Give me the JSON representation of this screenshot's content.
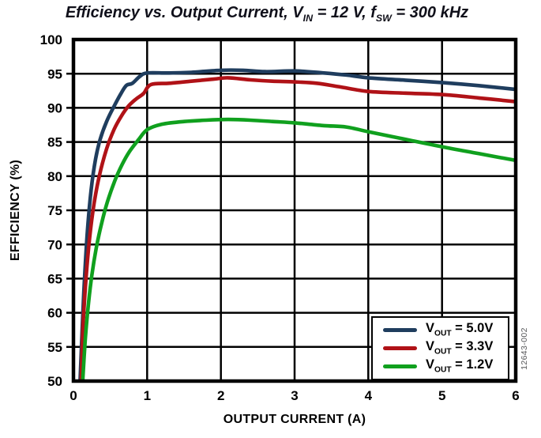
{
  "figure": {
    "title_markup": "Efficiency vs. Output Current, V_{IN} = 12 V, f_{SW} = 300 kHz",
    "watermark": "12643-002"
  },
  "chart_data": {
    "type": "line",
    "title": "Efficiency vs. Output Current, VIN = 12 V, fSW = 300 kHz",
    "xlabel": "OUTPUT CURRENT (A)",
    "ylabel": "EFFICIENCY (%)",
    "xlim": [
      0,
      6
    ],
    "ylim": [
      50,
      100
    ],
    "xticks": [
      0,
      1,
      2,
      3,
      4,
      5,
      6
    ],
    "yticks": [
      50,
      55,
      60,
      65,
      70,
      75,
      80,
      85,
      90,
      95,
      100
    ],
    "grid": true,
    "grid_color": "#000000",
    "legend_position": "lower right",
    "series": [
      {
        "name": "VOUT = 5.0V",
        "name_markup": "V_{OUT} = 5.0V",
        "color": "#1f3d5e",
        "points": [
          [
            0.09,
            50
          ],
          [
            0.12,
            58
          ],
          [
            0.15,
            65
          ],
          [
            0.19,
            72
          ],
          [
            0.24,
            78
          ],
          [
            0.3,
            82.5
          ],
          [
            0.36,
            85.3
          ],
          [
            0.45,
            88.0
          ],
          [
            0.55,
            90.2
          ],
          [
            0.65,
            92.2
          ],
          [
            0.72,
            93.3
          ],
          [
            0.8,
            93.6
          ],
          [
            0.9,
            94.6
          ],
          [
            1.0,
            95.1
          ],
          [
            1.3,
            95.1
          ],
          [
            1.6,
            95.2
          ],
          [
            2.0,
            95.5
          ],
          [
            2.3,
            95.5
          ],
          [
            2.6,
            95.3
          ],
          [
            3.0,
            95.4
          ],
          [
            3.4,
            95.1
          ],
          [
            3.7,
            94.8
          ],
          [
            4.0,
            94.4
          ],
          [
            4.5,
            94.05
          ],
          [
            5.0,
            93.7
          ],
          [
            5.5,
            93.25
          ],
          [
            6.0,
            92.7
          ]
        ]
      },
      {
        "name": "VOUT = 3.3V",
        "name_markup": "V_{OUT} = 3.3V",
        "color": "#b01217",
        "points": [
          [
            0.105,
            50
          ],
          [
            0.13,
            58
          ],
          [
            0.17,
            65
          ],
          [
            0.22,
            71
          ],
          [
            0.28,
            76
          ],
          [
            0.35,
            80
          ],
          [
            0.45,
            84
          ],
          [
            0.55,
            86.8
          ],
          [
            0.65,
            88.8
          ],
          [
            0.75,
            90.3
          ],
          [
            0.85,
            91.3
          ],
          [
            0.95,
            92.1
          ],
          [
            1.05,
            93.4
          ],
          [
            1.3,
            93.6
          ],
          [
            1.6,
            93.9
          ],
          [
            1.9,
            94.2
          ],
          [
            2.1,
            94.4
          ],
          [
            2.4,
            94.1
          ],
          [
            2.7,
            93.9
          ],
          [
            3.0,
            93.8
          ],
          [
            3.3,
            93.6
          ],
          [
            3.6,
            93.1
          ],
          [
            4.0,
            92.4
          ],
          [
            4.5,
            92.15
          ],
          [
            5.0,
            91.95
          ],
          [
            5.5,
            91.45
          ],
          [
            6.0,
            90.9
          ]
        ]
      },
      {
        "name": "VOUT = 1.2V",
        "name_markup": "V_{OUT} = 1.2V",
        "color": "#10a01e",
        "points": [
          [
            0.125,
            50
          ],
          [
            0.16,
            56
          ],
          [
            0.2,
            61
          ],
          [
            0.25,
            65.5
          ],
          [
            0.31,
            69.5
          ],
          [
            0.38,
            73
          ],
          [
            0.46,
            76.2
          ],
          [
            0.56,
            79.3
          ],
          [
            0.66,
            81.7
          ],
          [
            0.76,
            83.6
          ],
          [
            0.88,
            85.3
          ],
          [
            1.0,
            86.8
          ],
          [
            1.2,
            87.6
          ],
          [
            1.5,
            88.0
          ],
          [
            1.8,
            88.2
          ],
          [
            2.1,
            88.3
          ],
          [
            2.4,
            88.2
          ],
          [
            2.7,
            88.0
          ],
          [
            3.0,
            87.8
          ],
          [
            3.4,
            87.4
          ],
          [
            3.7,
            87.2
          ],
          [
            4.0,
            86.5
          ],
          [
            4.5,
            85.4
          ],
          [
            5.0,
            84.3
          ],
          [
            5.5,
            83.3
          ],
          [
            6.0,
            82.3
          ]
        ]
      }
    ]
  }
}
